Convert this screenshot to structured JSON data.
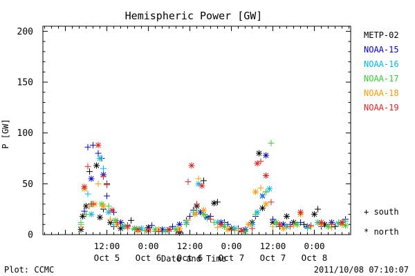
{
  "chart_data": {
    "type": "scatter",
    "title": "Hemispheric Power [GW]",
    "ylabel": "P [GW]",
    "xlabel": "Date and Time",
    "footer_left": "Plot: CCMC",
    "footer_right": "2011/10/08 07:10:07",
    "ylim": [
      0,
      205
    ],
    "xlim_hours_label": "hours from 2011-10-05 00:00 UT",
    "xlim": [
      -6.5,
      82.5
    ],
    "y_ticks": [
      0,
      50,
      100,
      150,
      200
    ],
    "y_tick_labels": [
      "0",
      "50",
      "100",
      "150",
      "200"
    ],
    "x_ticks": [
      {
        "x": 12,
        "time": "12:00",
        "date": "Oct 5"
      },
      {
        "x": 24,
        "time": "0:00",
        "date": "Oct 6"
      },
      {
        "x": 36,
        "time": "12:00",
        "date": "Oct 6"
      },
      {
        "x": 48,
        "time": "0:00",
        "date": "Oct 7"
      },
      {
        "x": 60,
        "time": "12:00",
        "date": "Oct 7"
      },
      {
        "x": 72,
        "time": "0:00",
        "date": "Oct 8"
      }
    ],
    "marker_legend": [
      {
        "symbol": "+",
        "label": "+ south"
      },
      {
        "symbol": "*",
        "label": "* north"
      }
    ],
    "series": [
      {
        "name": "METP-02",
        "color": "#000000",
        "points": [
          [
            4.5,
            5,
            "*"
          ],
          [
            5,
            18,
            "*"
          ],
          [
            6,
            28,
            "*"
          ],
          [
            7,
            62,
            "+"
          ],
          [
            7.5,
            30,
            "+"
          ],
          [
            9,
            68,
            "*"
          ],
          [
            10,
            17,
            "*"
          ],
          [
            11,
            25,
            "+"
          ],
          [
            12,
            50,
            "+"
          ],
          [
            13,
            12,
            "*"
          ],
          [
            14,
            8,
            "+"
          ],
          [
            16,
            6,
            "*"
          ],
          [
            19,
            14,
            "+"
          ],
          [
            21,
            5,
            "*"
          ],
          [
            24,
            7,
            "*"
          ],
          [
            27,
            3,
            "+"
          ],
          [
            30,
            5,
            "*"
          ],
          [
            33,
            2,
            "*"
          ],
          [
            35,
            14,
            "+"
          ],
          [
            37,
            24,
            "+"
          ],
          [
            38,
            28,
            "*"
          ],
          [
            40,
            53,
            "+"
          ],
          [
            41,
            17,
            "*"
          ],
          [
            43,
            31,
            "*"
          ],
          [
            44,
            32,
            "+"
          ],
          [
            46,
            12,
            "+"
          ],
          [
            48,
            6,
            "*"
          ],
          [
            51,
            3,
            "+"
          ],
          [
            54,
            12,
            "*"
          ],
          [
            56,
            80,
            "*"
          ],
          [
            57,
            26,
            "*"
          ],
          [
            58,
            42,
            "+"
          ],
          [
            60,
            12,
            "*"
          ],
          [
            62,
            8,
            "+"
          ],
          [
            64,
            18,
            "*"
          ],
          [
            66,
            12,
            "*"
          ],
          [
            69,
            10,
            "+"
          ],
          [
            72,
            20,
            "*"
          ],
          [
            73,
            25,
            "+"
          ],
          [
            75,
            10,
            "*"
          ],
          [
            78,
            8,
            "+"
          ],
          [
            80,
            12,
            "*"
          ],
          [
            81,
            15,
            "+"
          ]
        ]
      },
      {
        "name": "NOAA-15",
        "color": "#0000cc",
        "points": [
          [
            5.5,
            23,
            "+"
          ],
          [
            6.5,
            86,
            "+"
          ],
          [
            7.5,
            55,
            "*"
          ],
          [
            8,
            88,
            "+"
          ],
          [
            9.5,
            80,
            "+"
          ],
          [
            10.5,
            75,
            "+"
          ],
          [
            11,
            59,
            "*"
          ],
          [
            12,
            38,
            "+"
          ],
          [
            14,
            22,
            "+"
          ],
          [
            16,
            12,
            "*"
          ],
          [
            18,
            9,
            "+"
          ],
          [
            20,
            6,
            "*"
          ],
          [
            23,
            4,
            "+"
          ],
          [
            25,
            9,
            "+"
          ],
          [
            28,
            5,
            "*"
          ],
          [
            31,
            8,
            "+"
          ],
          [
            33,
            10,
            "*"
          ],
          [
            36,
            18,
            "+"
          ],
          [
            39,
            22,
            "*"
          ],
          [
            42,
            18,
            "+"
          ],
          [
            45,
            12,
            "*"
          ],
          [
            47,
            10,
            "+"
          ],
          [
            50,
            6,
            "+"
          ],
          [
            52,
            5,
            "*"
          ],
          [
            55,
            18,
            "+"
          ],
          [
            57,
            38,
            "*"
          ],
          [
            58,
            78,
            "*"
          ],
          [
            60,
            15,
            "+"
          ],
          [
            63,
            10,
            "*"
          ],
          [
            65,
            10,
            "+"
          ],
          [
            68,
            12,
            "+"
          ],
          [
            70,
            8,
            "*"
          ],
          [
            74,
            8,
            "+"
          ],
          [
            77,
            12,
            "*"
          ],
          [
            80,
            10,
            "+"
          ]
        ]
      },
      {
        "name": "NOAA-16",
        "color": "#00b8e6",
        "points": [
          [
            4.5,
            10,
            "+"
          ],
          [
            5.5,
            45,
            "*"
          ],
          [
            6.5,
            40,
            "+"
          ],
          [
            7.5,
            20,
            "*"
          ],
          [
            10,
            75,
            "*"
          ],
          [
            11,
            65,
            "+"
          ],
          [
            12.5,
            22,
            "*"
          ],
          [
            14,
            10,
            "+"
          ],
          [
            17,
            8,
            "*"
          ],
          [
            20,
            5,
            "+"
          ],
          [
            22,
            6,
            "*"
          ],
          [
            26,
            3,
            "+"
          ],
          [
            29,
            4,
            "*"
          ],
          [
            32,
            6,
            "+"
          ],
          [
            35,
            12,
            "*"
          ],
          [
            37,
            22,
            "+"
          ],
          [
            38.5,
            50,
            "*"
          ],
          [
            41,
            16,
            "+"
          ],
          [
            44,
            12,
            "*"
          ],
          [
            46,
            10,
            "+"
          ],
          [
            49,
            6,
            "*"
          ],
          [
            52,
            4,
            "+"
          ],
          [
            54,
            10,
            "*"
          ],
          [
            55.5,
            22,
            "*"
          ],
          [
            57,
            38,
            "+"
          ],
          [
            59,
            45,
            "*"
          ],
          [
            61,
            10,
            "+"
          ],
          [
            64,
            8,
            "*"
          ],
          [
            67,
            10,
            "+"
          ],
          [
            70,
            6,
            "+"
          ],
          [
            73,
            12,
            "*"
          ],
          [
            76,
            8,
            "+"
          ],
          [
            79,
            11,
            "*"
          ],
          [
            81,
            13,
            "+"
          ]
        ]
      },
      {
        "name": "NOAA-17",
        "color": "#33cc33",
        "points": [
          [
            4.5,
            12,
            "+"
          ],
          [
            6,
            20,
            "+"
          ],
          [
            8,
            30,
            "+"
          ],
          [
            10.5,
            30,
            "*"
          ],
          [
            12.5,
            28,
            "+"
          ],
          [
            14.5,
            14,
            "*"
          ],
          [
            17,
            9,
            "+"
          ],
          [
            20,
            6,
            "*"
          ],
          [
            23,
            4,
            "+"
          ],
          [
            26,
            5,
            "*"
          ],
          [
            29,
            3,
            "+"
          ],
          [
            32,
            5,
            "*"
          ],
          [
            35,
            10,
            "+"
          ],
          [
            38,
            22,
            "+"
          ],
          [
            40,
            20,
            "*"
          ],
          [
            43,
            12,
            "+"
          ],
          [
            46,
            8,
            "*"
          ],
          [
            49,
            4,
            "+"
          ],
          [
            52,
            3,
            "*"
          ],
          [
            55,
            20,
            "+"
          ],
          [
            58,
            42,
            "+"
          ],
          [
            59.5,
            90,
            "+"
          ],
          [
            61,
            12,
            "*"
          ],
          [
            64,
            8,
            "+"
          ],
          [
            67,
            10,
            "*"
          ],
          [
            70,
            7,
            "+"
          ],
          [
            73,
            12,
            "+"
          ],
          [
            76,
            8,
            "*"
          ],
          [
            79,
            12,
            "+"
          ],
          [
            81,
            9,
            "*"
          ]
        ]
      },
      {
        "name": "NOAA-18",
        "color": "#ff9900",
        "points": [
          [
            4.5,
            8,
            "+"
          ],
          [
            5.5,
            45,
            "*"
          ],
          [
            7,
            28,
            "+"
          ],
          [
            8.5,
            30,
            "*"
          ],
          [
            9.5,
            50,
            "+"
          ],
          [
            11,
            28,
            "*"
          ],
          [
            13,
            15,
            "+"
          ],
          [
            15,
            10,
            "*"
          ],
          [
            18,
            6,
            "+"
          ],
          [
            21,
            4,
            "*"
          ],
          [
            24,
            3,
            "+"
          ],
          [
            27,
            5,
            "*"
          ],
          [
            30,
            4,
            "+"
          ],
          [
            33,
            6,
            "*"
          ],
          [
            35.5,
            14,
            "+"
          ],
          [
            37.5,
            20,
            "*"
          ],
          [
            38.5,
            55,
            "+"
          ],
          [
            40,
            24,
            "*"
          ],
          [
            42,
            15,
            "+"
          ],
          [
            44,
            7,
            "+"
          ],
          [
            47,
            5,
            "*"
          ],
          [
            50,
            4,
            "+"
          ],
          [
            53,
            10,
            "*"
          ],
          [
            55,
            42,
            "*"
          ],
          [
            56.5,
            46,
            "+"
          ],
          [
            58,
            30,
            "*"
          ],
          [
            60,
            8,
            "+"
          ],
          [
            63,
            6,
            "*"
          ],
          [
            66,
            9,
            "+"
          ],
          [
            68,
            20,
            "*"
          ],
          [
            71,
            8,
            "+"
          ],
          [
            74,
            10,
            "*"
          ],
          [
            77,
            7,
            "+"
          ],
          [
            80,
            10,
            "*"
          ]
        ]
      },
      {
        "name": "NOAA-19",
        "color": "#e02020",
        "points": [
          [
            5.5,
            47,
            "*"
          ],
          [
            6.5,
            67,
            "+"
          ],
          [
            8,
            30,
            "+"
          ],
          [
            9.5,
            88,
            "*"
          ],
          [
            11,
            57,
            "+"
          ],
          [
            12,
            49,
            "+"
          ],
          [
            13.5,
            24,
            "*"
          ],
          [
            15,
            12,
            "+"
          ],
          [
            18,
            8,
            "*"
          ],
          [
            21,
            5,
            "+"
          ],
          [
            24,
            4,
            "*"
          ],
          [
            27,
            3,
            "+"
          ],
          [
            30,
            5,
            "*"
          ],
          [
            33,
            3,
            "+"
          ],
          [
            35.5,
            52,
            "+"
          ],
          [
            36.5,
            68,
            "*"
          ],
          [
            38,
            30,
            "+"
          ],
          [
            39.5,
            48,
            "*"
          ],
          [
            42,
            15,
            "+"
          ],
          [
            45,
            10,
            "*"
          ],
          [
            48,
            5,
            "+"
          ],
          [
            51,
            4,
            "*"
          ],
          [
            54,
            6,
            "+"
          ],
          [
            55.5,
            70,
            "*"
          ],
          [
            56.5,
            72,
            "+"
          ],
          [
            58,
            58,
            "*"
          ],
          [
            59.5,
            32,
            "+"
          ],
          [
            62,
            10,
            "*"
          ],
          [
            65,
            8,
            "+"
          ],
          [
            68,
            22,
            "*"
          ],
          [
            71,
            9,
            "+"
          ],
          [
            74,
            12,
            "*"
          ],
          [
            77,
            10,
            "+"
          ],
          [
            80,
            12,
            "*"
          ]
        ]
      }
    ]
  }
}
